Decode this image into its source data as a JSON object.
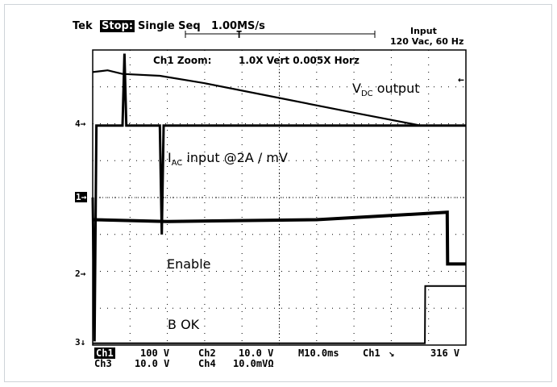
{
  "header": {
    "brand": "Tek",
    "state": "Stop:",
    "mode": "Single Seq",
    "rate": "1.00MS/s",
    "input_title": "Input",
    "input_value": "120 Vac, 60 Hz",
    "trigger_marker": "T"
  },
  "zoom_line": {
    "label": "Ch1 Zoom:",
    "value": "1.0X Vert 0.005X Horz"
  },
  "traces": {
    "vdc_main": "V",
    "vdc_sub": "DC",
    "vdc_rest": " output",
    "iac_main": "I",
    "iac_sub": "AC",
    "iac_rest": " input @2A / mV",
    "enable": "Enable",
    "bok": "B OK"
  },
  "markers": {
    "ch4": "4→",
    "ch1": "1→",
    "ch2": "2→",
    "ch3": "3↓",
    "right": "←"
  },
  "footer": {
    "ch1": "Ch1",
    "ch1_val": "100 V",
    "ch2": "Ch2",
    "ch2_val": "10.0 V",
    "timebase": "M10.0ms",
    "trig_ch": "Ch1",
    "trig_slope": "↘",
    "trig_level": "316 V",
    "ch3": "Ch3",
    "ch3_val": "10.0 V",
    "ch4": "Ch4",
    "ch4_val": "10.0mVΩ"
  },
  "chart_data": {
    "type": "line",
    "x_unit": "ms",
    "x_range": [
      0,
      100
    ],
    "y_unit": "div",
    "y_range": [
      0,
      8
    ],
    "grid": true,
    "series": [
      {
        "name": "V DC output",
        "x": [
          0,
          4,
          8,
          18,
          30,
          50,
          70,
          88,
          100
        ],
        "y": [
          7.4,
          7.45,
          7.35,
          7.3,
          7.1,
          6.7,
          6.3,
          5.95,
          5.95
        ]
      },
      {
        "name": "I AC input @2A / mV",
        "x": [
          0,
          0.5,
          1,
          8,
          8.5,
          9,
          18,
          18.5,
          19,
          100
        ],
        "y": [
          4,
          0.1,
          5.95,
          5.95,
          7.9,
          5.95,
          5.95,
          3.0,
          5.95,
          5.95
        ]
      },
      {
        "name": "Enable",
        "x": [
          0,
          20,
          60,
          95,
          95.1,
          100
        ],
        "y": [
          3.4,
          3.35,
          3.4,
          3.6,
          2.2,
          2.2
        ]
      },
      {
        "name": "B OK",
        "x": [
          0,
          89,
          89.1,
          100
        ],
        "y": [
          0.05,
          0.05,
          1.6,
          1.6
        ]
      }
    ]
  }
}
